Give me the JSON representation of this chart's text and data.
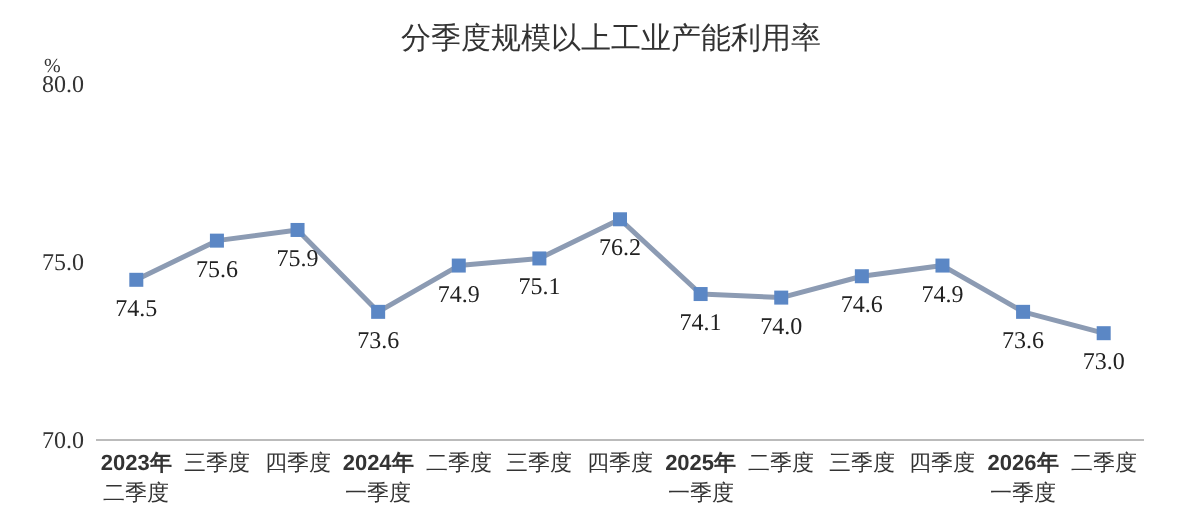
{
  "chart_data": {
    "type": "line",
    "title": "分季度规模以上工业产能利用率",
    "ylabel": "%",
    "categories": [
      "2023年二季度",
      "三季度",
      "四季度",
      "2024年一季度",
      "二季度",
      "三季度",
      "四季度",
      "2025年一季度",
      "二季度",
      "三季度",
      "四季度",
      "2026年一季度",
      "二季度"
    ],
    "series": [
      {
        "color": "#8c9bb3",
        "values": [
          74.5,
          75.6,
          75.9,
          73.6,
          74.9,
          75.1,
          76.2,
          74.1,
          74.0,
          74.6,
          74.9,
          73.6,
          73.0
        ],
        "value_labels": [
          "74.5",
          "75.6",
          "75.9",
          "73.6",
          "74.9",
          "75.1",
          "76.2",
          "74.1",
          "74.0",
          "74.6",
          "74.9",
          "73.6",
          "73.0"
        ]
      }
    ],
    "ylim": [
      70,
      80
    ],
    "yticks": [
      {
        "value": 70,
        "label": "70.0"
      },
      {
        "value": 75,
        "label": "75.0"
      },
      {
        "value": 80,
        "label": "80.0"
      }
    ],
    "marker": "square",
    "grid": false
  }
}
